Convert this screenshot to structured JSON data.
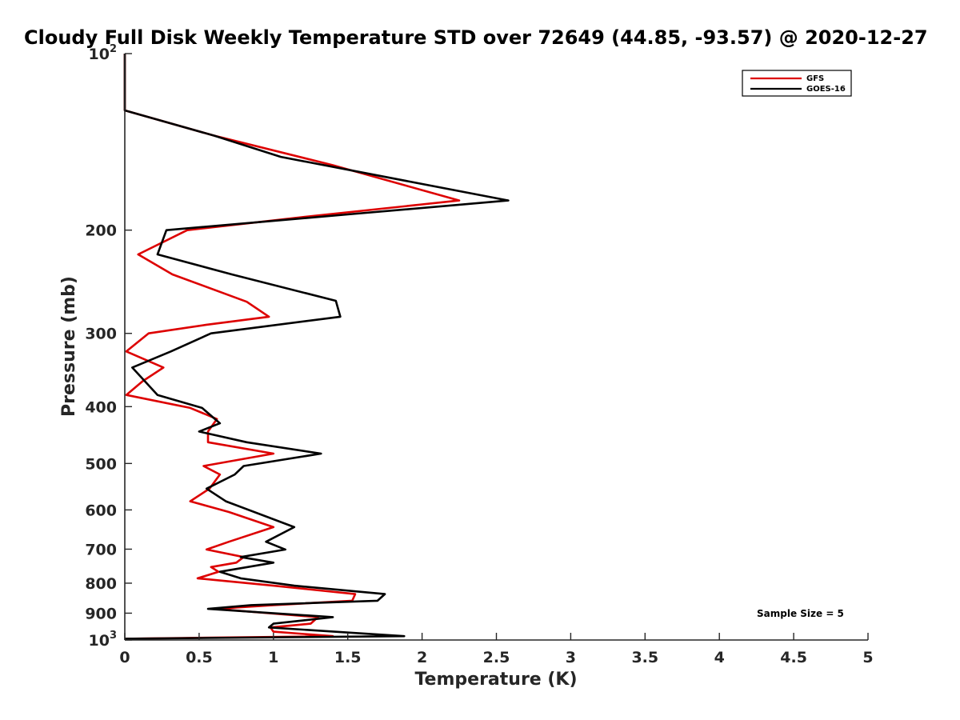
{
  "chart_data": {
    "type": "line",
    "title": "Cloudy Full Disk Weekly Temperature STD over 72649 (44.85, -93.57) @ 2020-12-27",
    "xlabel": "Temperature (K)",
    "ylabel": "Pressure (mb)",
    "xlim": [
      0,
      5
    ],
    "ylim": [
      100,
      1000
    ],
    "yscale": "log",
    "y_reversed": true,
    "x_ticks": [
      0,
      0.5,
      1,
      1.5,
      2,
      2.5,
      3,
      3.5,
      4,
      4.5,
      5
    ],
    "x_tick_labels": [
      "0",
      "0.5",
      "1",
      "1.5",
      "2",
      "2.5",
      "3",
      "3.5",
      "4",
      "4.5",
      "5"
    ],
    "y_ticks": [
      100,
      200,
      300,
      400,
      500,
      600,
      700,
      800,
      900,
      1000
    ],
    "y_tick_labels": [
      {
        "base": "10",
        "exp": "2"
      },
      {
        "base": "200",
        "exp": ""
      },
      {
        "base": "300",
        "exp": ""
      },
      {
        "base": "400",
        "exp": ""
      },
      {
        "base": "500",
        "exp": ""
      },
      {
        "base": "600",
        "exp": ""
      },
      {
        "base": "700",
        "exp": ""
      },
      {
        "base": "800",
        "exp": ""
      },
      {
        "base": "900",
        "exp": ""
      },
      {
        "base": "10",
        "exp": "3"
      }
    ],
    "grid": false,
    "legend_position": "top-right",
    "annotation": "Sample Size = 5",
    "series": [
      {
        "name": "GFS",
        "color": "#dd0000",
        "points": [
          [
            0,
            100
          ],
          [
            0,
            125
          ],
          [
            0.6,
            138
          ],
          [
            1.4,
            155
          ],
          [
            2.25,
            178
          ],
          [
            1.2,
            190
          ],
          [
            0.42,
            200
          ],
          [
            0.09,
            220
          ],
          [
            0.32,
            238
          ],
          [
            0.82,
            265
          ],
          [
            0.97,
            281
          ],
          [
            0.55,
            290
          ],
          [
            0.16,
            300
          ],
          [
            0.01,
            322
          ],
          [
            0.26,
            343
          ],
          [
            0.12,
            362
          ],
          [
            0.01,
            382
          ],
          [
            0.44,
            402
          ],
          [
            0.62,
            420
          ],
          [
            0.56,
            441
          ],
          [
            0.56,
            460
          ],
          [
            1.0,
            481
          ],
          [
            0.53,
            505
          ],
          [
            0.64,
            522
          ],
          [
            0.57,
            552
          ],
          [
            0.44,
            580
          ],
          [
            0.7,
            605
          ],
          [
            1.0,
            642
          ],
          [
            0.7,
            680
          ],
          [
            0.55,
            701
          ],
          [
            0.8,
            722
          ],
          [
            0.75,
            738
          ],
          [
            0.58,
            751
          ],
          [
            0.63,
            765
          ],
          [
            0.49,
            785
          ],
          [
            1.0,
            808
          ],
          [
            1.55,
            835
          ],
          [
            1.53,
            857
          ],
          [
            1.0,
            872
          ],
          [
            0.61,
            885
          ],
          [
            1.3,
            914
          ],
          [
            1.25,
            938
          ],
          [
            0.98,
            952
          ],
          [
            1.0,
            968
          ],
          [
            1.4,
            985
          ],
          [
            0,
            995
          ]
        ]
      },
      {
        "name": "GOES-16",
        "color": "#000000",
        "points": [
          [
            0,
            100
          ],
          [
            0,
            125
          ],
          [
            0.6,
            138
          ],
          [
            1.05,
            150
          ],
          [
            2.58,
            178
          ],
          [
            1.5,
            188
          ],
          [
            0.28,
            200
          ],
          [
            0.22,
            220
          ],
          [
            0.72,
            238
          ],
          [
            1.42,
            264
          ],
          [
            1.45,
            281
          ],
          [
            0.58,
            300
          ],
          [
            0.31,
            322
          ],
          [
            0.05,
            343
          ],
          [
            0.22,
            382
          ],
          [
            0.52,
            402
          ],
          [
            0.64,
            427
          ],
          [
            0.5,
            441
          ],
          [
            0.82,
            460
          ],
          [
            1.32,
            481
          ],
          [
            0.8,
            505
          ],
          [
            0.74,
            522
          ],
          [
            0.55,
            552
          ],
          [
            0.68,
            580
          ],
          [
            1.14,
            642
          ],
          [
            0.95,
            680
          ],
          [
            1.08,
            701
          ],
          [
            0.78,
            722
          ],
          [
            1.0,
            738
          ],
          [
            0.64,
            765
          ],
          [
            0.78,
            785
          ],
          [
            1.14,
            808
          ],
          [
            1.75,
            835
          ],
          [
            1.7,
            857
          ],
          [
            0.85,
            872
          ],
          [
            0.56,
            885
          ],
          [
            1.4,
            914
          ],
          [
            1.0,
            938
          ],
          [
            0.97,
            952
          ],
          [
            1.88,
            985
          ],
          [
            0,
            995
          ]
        ]
      }
    ]
  }
}
